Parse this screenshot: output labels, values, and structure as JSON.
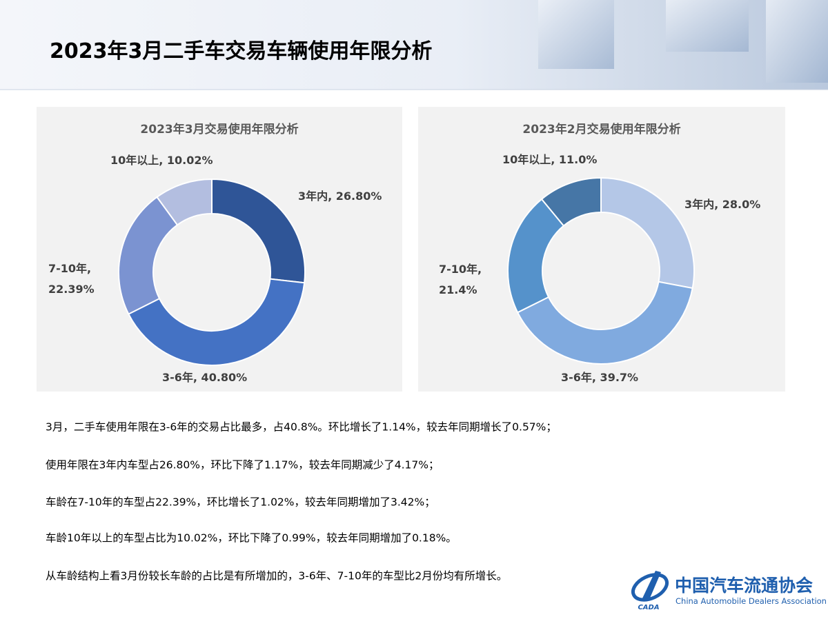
{
  "title": "2023年3月二手车交易车辆使用年限分析",
  "chart_data": [
    {
      "type": "donut",
      "title": "2023年3月交易使用年限分析",
      "categories": [
        "3年内",
        "3-6年",
        "7-10年",
        "10年以上"
      ],
      "values": [
        26.8,
        40.8,
        22.39,
        10.02
      ],
      "value_labels": [
        "3年内, 26.80%",
        "3-6年, 40.80%",
        "7-10年, 22.39%",
        "10年以上, 10.02%"
      ],
      "colors": [
        "#2f5597",
        "#4472c4",
        "#7b93d1",
        "#b3bee0"
      ]
    },
    {
      "type": "donut",
      "title": "2023年2月交易使用年限分析",
      "categories": [
        "3年内",
        "3-6年",
        "7-10年",
        "10年以上"
      ],
      "values": [
        28.0,
        39.7,
        21.4,
        11.0
      ],
      "value_labels": [
        "3年内, 28.0%",
        "3-6年, 39.7%",
        "7-10年, 21.4%",
        "10年以上, 11.0%"
      ],
      "colors": [
        "#b4c7e7",
        "#80aadf",
        "#5592cb",
        "#4676a6"
      ]
    }
  ],
  "paragraphs": [
    "3月，二手车使用年限在3-6年的交易占比最多，占40.8%。环比增长了1.14%，较去年同期增长了0.57%；",
    "使用年限在3年内车型占26.80%，环比下降了1.17%，较去年同期减少了4.17%；",
    "车龄在7-10年的车型占22.39%，环比增长了1.02%，较去年同期增加了3.42%；",
    "车龄10年以上的车型占比为10.02%，环比下降了0.99%，较去年同期增加了0.18%。",
    "从车龄结构上看3月份较长车龄的占比是有所增加的，3-6年、7-10年的车型比2月份均有所增长。"
  ],
  "logo": {
    "name": "中国汽车流通协会",
    "english": "China Automobile Dealers Association",
    "mark": "CADA"
  }
}
